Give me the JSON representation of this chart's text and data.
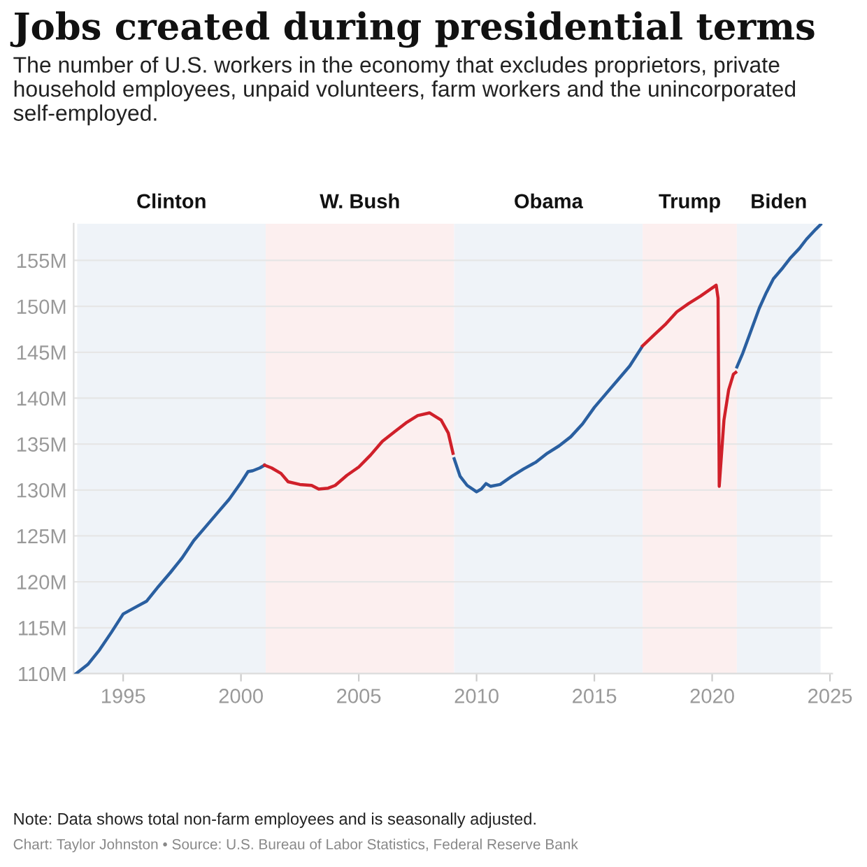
{
  "chart_data": {
    "type": "line",
    "title": "Jobs created during presidential terms",
    "subtitle": "The number of U.S. workers in the economy that excludes proprietors, private household employees, unpaid volunteers, farm workers and the unincorporated self-employed.",
    "annotations": [
      "Note: Data shows total non-farm employees and is seasonally adjusted.",
      "Chart: Taylor Johnston • Source: U.S. Bureau of Labor Statistics, Federal Reserve Bank"
    ],
    "xlim": [
      1992.9,
      2025.1
    ],
    "ylim": [
      110,
      159
    ],
    "xticks": [
      1995,
      2000,
      2005,
      2010,
      2015,
      2020,
      2025
    ],
    "yticks": [
      {
        "value": 110,
        "label": "110M"
      },
      {
        "value": 115,
        "label": "115M"
      },
      {
        "value": 120,
        "label": "120M"
      },
      {
        "value": 125,
        "label": "125M"
      },
      {
        "value": 130,
        "label": "130M"
      },
      {
        "value": 135,
        "label": "135M"
      },
      {
        "value": 140,
        "label": "140M"
      },
      {
        "value": 145,
        "label": "145M"
      },
      {
        "value": 150,
        "label": "150M"
      },
      {
        "value": 155,
        "label": "155M"
      }
    ],
    "grid": "y",
    "marker": "none",
    "line_style": "solid",
    "bands": [
      {
        "axis": "x",
        "from": 1993.05,
        "to": 2001.05,
        "label": "Clinton",
        "color": "#eff3f8"
      },
      {
        "axis": "x",
        "from": 2001.05,
        "to": 2009.05,
        "label": "W. Bush",
        "color": "#fcefef"
      },
      {
        "axis": "x",
        "from": 2009.05,
        "to": 2017.05,
        "label": "Obama",
        "color": "#eff3f8"
      },
      {
        "axis": "x",
        "from": 2017.05,
        "to": 2021.05,
        "label": "Trump",
        "color": "#fcefef"
      },
      {
        "axis": "x",
        "from": 2021.05,
        "to": 2024.6,
        "label": "Biden",
        "color": "#eff3f8"
      }
    ],
    "series": [
      {
        "color": "#2a5fa0",
        "x": [
          1993.0,
          1993.5,
          1994.0,
          1994.5,
          1995.0,
          1995.5,
          1996.0,
          1996.5,
          1997.0,
          1997.5,
          1998.0,
          1998.5,
          1999.0,
          1999.5,
          2000.0,
          2000.3,
          2000.5,
          2000.8,
          2001.0
        ],
        "values": [
          110.0,
          111.0,
          112.6,
          114.5,
          116.5,
          117.2,
          117.9,
          119.5,
          121.0,
          122.6,
          124.5,
          126.0,
          127.5,
          129.0,
          130.8,
          132.0,
          132.1,
          132.4,
          132.7
        ]
      },
      {
        "color": "#d0202a",
        "x": [
          2001.0,
          2001.3,
          2001.7,
          2002.0,
          2002.5,
          2003.0,
          2003.3,
          2003.7,
          2004.0,
          2004.5,
          2005.0,
          2005.5,
          2006.0,
          2006.5,
          2007.0,
          2007.5,
          2008.0,
          2008.5,
          2008.8,
          2009.0
        ],
        "values": [
          132.7,
          132.4,
          131.8,
          130.9,
          130.6,
          130.5,
          130.1,
          130.2,
          130.5,
          131.6,
          132.5,
          133.8,
          135.3,
          136.3,
          137.3,
          138.1,
          138.4,
          137.6,
          136.2,
          134.0
        ]
      },
      {
        "color": "#2a5fa0",
        "x": [
          2009.05,
          2009.3,
          2009.6,
          2010.0,
          2010.2,
          2010.4,
          2010.6,
          2011.0,
          2011.5,
          2012.0,
          2012.5,
          2013.0,
          2013.5,
          2014.0,
          2014.5,
          2015.0,
          2015.5,
          2016.0,
          2016.5,
          2017.0
        ],
        "values": [
          133.4,
          131.5,
          130.5,
          129.8,
          130.1,
          130.7,
          130.4,
          130.6,
          131.5,
          132.3,
          133.0,
          134.0,
          134.8,
          135.8,
          137.2,
          139.0,
          140.5,
          142.0,
          143.5,
          145.5
        ]
      },
      {
        "color": "#d0202a",
        "x": [
          2017.05,
          2017.5,
          2018.0,
          2018.5,
          2019.0,
          2019.5,
          2020.0,
          2020.17,
          2020.25,
          2020.3,
          2020.5,
          2020.7,
          2020.9,
          2021.0
        ],
        "values": [
          145.7,
          146.8,
          148.0,
          149.4,
          150.3,
          151.1,
          152.0,
          152.3,
          150.9,
          130.4,
          137.6,
          140.9,
          142.6,
          142.8
        ]
      },
      {
        "color": "#2a5fa0",
        "x": [
          2021.05,
          2021.3,
          2021.6,
          2022.0,
          2022.3,
          2022.6,
          2023.0,
          2023.3,
          2023.7,
          2024.0,
          2024.4,
          2024.6
        ],
        "values": [
          143.4,
          144.9,
          147.0,
          149.8,
          151.5,
          153.0,
          154.2,
          155.2,
          156.3,
          157.3,
          158.4,
          158.9
        ]
      }
    ]
  }
}
